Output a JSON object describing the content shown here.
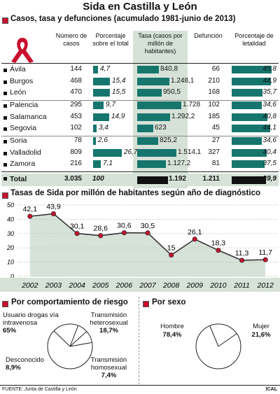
{
  "title": "Sida en Castilla y León",
  "table_section": {
    "heading": "Casos, tasa y defunciones (acumulado 1981-junio de 2013)",
    "columns": [
      "Número de casos",
      "Porcentaje sobre el total",
      "Tasa (casos por millón de habitantes)",
      "Defunción",
      "Porcentaje de letalidad"
    ]
  },
  "line_section": {
    "heading": "Tasas de Sida por millón de habitantes según año de diagnóstico"
  },
  "pie1_section": {
    "heading": "Por comportamiento de riesgo"
  },
  "pie2_section": {
    "heading": "Por sexo"
  },
  "footer": {
    "source": "FUENTE: Junta de Castilla y León",
    "agency": "ICAL"
  },
  "colors": {
    "bar": "#16766e",
    "dark": "#111111",
    "highlight": "#d6e2d8",
    "accent": "#c8102e"
  },
  "chart_data": [
    {
      "type": "table",
      "title": "Casos, tasa y defunciones (acumulado 1981-junio de 2013)",
      "columns": [
        "Número de casos",
        "Porcentaje sobre el total",
        "Tasa (casos por millón de habitantes)",
        "Defunción",
        "Porcentaje de letalidad"
      ],
      "rows": [
        {
          "name": "Ávila",
          "casos": "144",
          "pct": "4,7",
          "tasa": "840,8",
          "def": "66",
          "let": "45,8",
          "pct_v": 4.7,
          "tasa_v": 840.8,
          "let_v": 45.8
        },
        {
          "name": "Burgos",
          "casos": "468",
          "pct": "15,4",
          "tasa": "1.248,1",
          "def": "210",
          "let": "44,9",
          "pct_v": 15.4,
          "tasa_v": 1248.1,
          "let_v": 44.9
        },
        {
          "name": "León",
          "casos": "470",
          "pct": "15,5",
          "tasa": "950,5",
          "def": "168",
          "let": "35,7",
          "pct_v": 15.5,
          "tasa_v": 950.5,
          "let_v": 35.7
        },
        {
          "name": "Palencia",
          "casos": "295",
          "pct": "9,7",
          "tasa": "1.728",
          "def": "102",
          "let": "34,6",
          "pct_v": 9.7,
          "tasa_v": 1728,
          "let_v": 34.6
        },
        {
          "name": "Salamanca",
          "casos": "453",
          "pct": "14,9",
          "tasa": "1.292,2",
          "def": "185",
          "let": "40,8",
          "pct_v": 14.9,
          "tasa_v": 1292.2,
          "let_v": 40.8
        },
        {
          "name": "Segovia",
          "casos": "102",
          "pct": "3,4",
          "tasa": "623",
          "def": "45",
          "let": "44,1",
          "pct_v": 3.4,
          "tasa_v": 623,
          "let_v": 44.1
        },
        {
          "name": "Soria",
          "casos": "78",
          "pct": "2,6",
          "tasa": "825,2",
          "def": "27",
          "let": "34,6",
          "pct_v": 2.6,
          "tasa_v": 825.2,
          "let_v": 34.6
        },
        {
          "name": "Valladolid",
          "casos": "809",
          "pct": "26,7",
          "tasa": "1.514,1",
          "def": "327",
          "let": "40,4",
          "pct_v": 26.7,
          "tasa_v": 1514.1,
          "let_v": 40.4
        },
        {
          "name": "Zamora",
          "casos": "216",
          "pct": "7,1",
          "tasa": "1.127,2",
          "def": "81",
          "let": "37,5",
          "pct_v": 7.1,
          "tasa_v": 1127.2,
          "let_v": 37.5
        }
      ],
      "total": {
        "name": "Total",
        "casos": "3.035",
        "pct": "100",
        "tasa": "1.192",
        "def": "1.211",
        "let": "39,9",
        "pct_v": 100,
        "tasa_v": 1192,
        "let_v": 39.9
      }
    },
    {
      "type": "line",
      "title": "Tasas de Sida por millón de habitantes según año de diagnóstico",
      "x": [
        "2002",
        "2003",
        "2004",
        "2005",
        "2006",
        "2007",
        "2008",
        "2009",
        "2010",
        "2011",
        "2012"
      ],
      "values": [
        42.1,
        43.9,
        30.1,
        28.6,
        30.6,
        30.5,
        15,
        26.1,
        18.3,
        11.3,
        11.7
      ],
      "labels": [
        "42,1",
        "43,9",
        "30,1",
        "28,6",
        "30,6",
        "30,5",
        "15",
        "26,1",
        "18,3",
        "11,3",
        "11,7"
      ],
      "yticks": [
        "0",
        "10",
        "20",
        "30",
        "40",
        "50"
      ],
      "ylim": [
        0,
        50
      ],
      "grid": true
    },
    {
      "type": "pie",
      "title": "Por comportamiento de riesgo",
      "slices": [
        {
          "label": "Usuario drogas vía intravenosa",
          "value": 65,
          "text": "65%"
        },
        {
          "label": "Transmisión heterosexual",
          "value": 18.7,
          "text": "18,7%"
        },
        {
          "label": "Transmisión homosexual",
          "value": 7.4,
          "text": "7,4%"
        },
        {
          "label": "Desconocido",
          "value": 8.9,
          "text": "8,9%"
        }
      ]
    },
    {
      "type": "pie",
      "title": "Por sexo",
      "slices": [
        {
          "label": "Hombre",
          "value": 78.4,
          "text": "78,4%"
        },
        {
          "label": "Mujer",
          "value": 21.6,
          "text": "21,6%"
        }
      ]
    }
  ]
}
